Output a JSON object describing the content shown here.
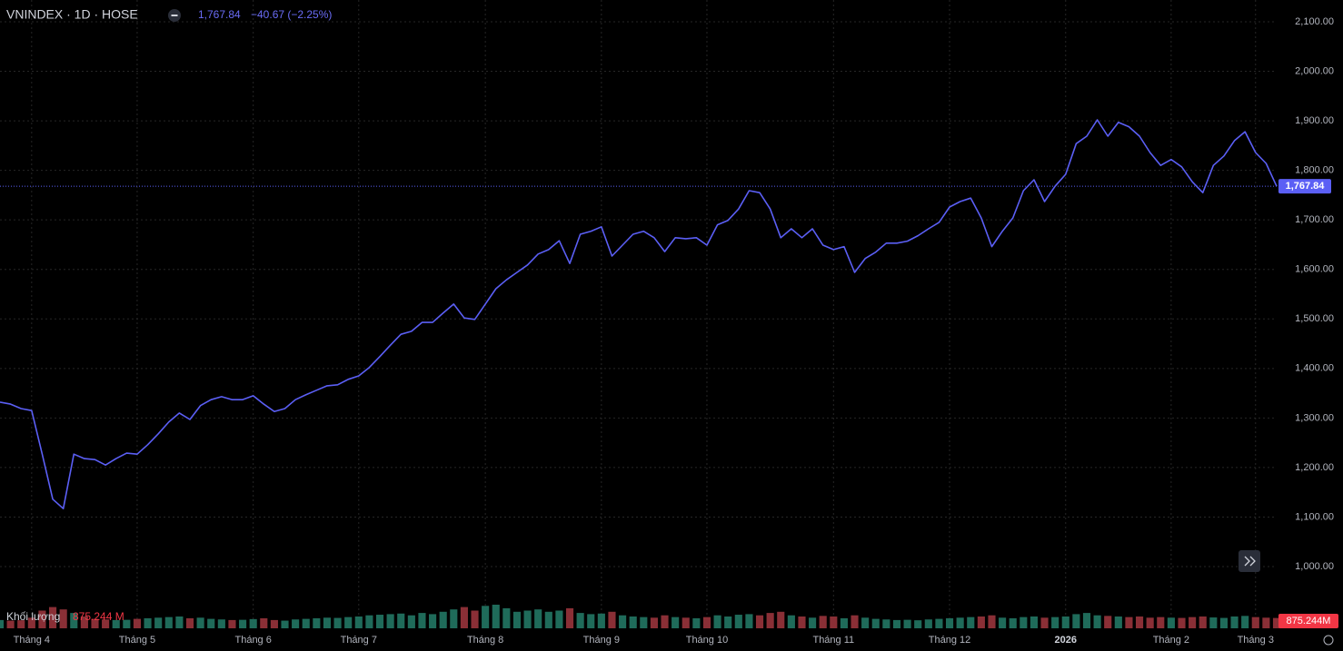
{
  "chart_data": {
    "type": "line",
    "title": "VNINDEX · 1D · HOSE",
    "last_price_label": "1,767.84",
    "change_label": "−40.67 (−2.25%)",
    "color": "#5b5ff5",
    "categories": [
      null,
      null,
      null,
      "Tháng 4",
      null,
      null,
      null,
      null,
      null,
      null,
      null,
      null,
      null,
      "Tháng 5",
      null,
      null,
      null,
      null,
      null,
      null,
      null,
      null,
      null,
      null,
      "Tháng 6",
      null,
      null,
      null,
      null,
      null,
      null,
      null,
      null,
      null,
      "Tháng 7",
      null,
      null,
      null,
      null,
      null,
      null,
      null,
      null,
      null,
      null,
      null,
      "Tháng 8",
      null,
      null,
      null,
      null,
      null,
      null,
      null,
      null,
      null,
      null,
      "Tháng 9",
      null,
      null,
      null,
      null,
      null,
      null,
      null,
      null,
      null,
      "Tháng 10",
      null,
      null,
      null,
      null,
      null,
      null,
      null,
      null,
      null,
      null,
      null,
      "Tháng 11",
      null,
      null,
      null,
      null,
      null,
      null,
      null,
      null,
      null,
      null,
      "Tháng 12",
      null,
      null,
      null,
      null,
      null,
      null,
      null,
      null,
      null,
      null,
      "2026",
      null,
      null,
      null,
      null,
      null,
      null,
      null,
      null,
      null,
      "Tháng 2",
      null,
      null,
      null,
      null,
      null,
      null,
      null,
      "Tháng 3",
      null,
      null
    ],
    "values": [
      1332,
      1328,
      1319,
      1315,
      1227,
      1136,
      1117,
      1227,
      1218,
      1216,
      1205,
      1218,
      1229,
      1227,
      1246,
      1268,
      1292,
      1310,
      1297,
      1325,
      1337,
      1343,
      1337,
      1337,
      1345,
      1328,
      1313,
      1319,
      1337,
      1347,
      1356,
      1365,
      1367,
      1378,
      1385,
      1402,
      1424,
      1447,
      1469,
      1475,
      1493,
      1493,
      1512,
      1530,
      1502,
      1499,
      1530,
      1561,
      1579,
      1594,
      1609,
      1631,
      1640,
      1658,
      1612,
      1671,
      1677,
      1686,
      1627,
      1649,
      1671,
      1677,
      1664,
      1636,
      1664,
      1662,
      1664,
      1649,
      1690,
      1699,
      1722,
      1759,
      1755,
      1722,
      1664,
      1682,
      1664,
      1682,
      1649,
      1640,
      1646,
      1594,
      1622,
      1635,
      1653,
      1653,
      1657,
      1668,
      1682,
      1695,
      1726,
      1737,
      1744,
      1704,
      1646,
      1677,
      1704,
      1759,
      1781,
      1737,
      1768,
      1792,
      1854,
      1869,
      1902,
      1869,
      1897,
      1888,
      1869,
      1836,
      1810,
      1822,
      1807,
      1777,
      1755,
      1810,
      1829,
      1860,
      1878,
      1836,
      1814,
      1767.84
    ],
    "ylim": [
      934,
      2144
    ],
    "yticks": [
      {
        "value": 1000,
        "label": "1,000.00"
      },
      {
        "value": 1100,
        "label": "1,100.00"
      },
      {
        "value": 1200,
        "label": "1,200.00"
      },
      {
        "value": 1300,
        "label": "1,300.00"
      },
      {
        "value": 1400,
        "label": "1,400.00"
      },
      {
        "value": 1500,
        "label": "1,500.00"
      },
      {
        "value": 1600,
        "label": "1,600.00"
      },
      {
        "value": 1700,
        "label": "1,700.00"
      },
      {
        "value": 1800,
        "label": "1,800.00"
      },
      {
        "value": 1900,
        "label": "1,900.00"
      },
      {
        "value": 2000,
        "label": "2,000.00"
      },
      {
        "value": 2100,
        "label": "2,100.00"
      }
    ],
    "grid": true,
    "volume": {
      "name": "Khối lượng",
      "value_label": "875.244 M",
      "axis_label": "875.244M",
      "up_color": "#1f6b5a",
      "down_color": "#8a2f36",
      "values": [
        700,
        650,
        680,
        900,
        1500,
        1800,
        1600,
        1300,
        1000,
        800,
        750,
        700,
        720,
        800,
        850,
        900,
        950,
        1000,
        850,
        900,
        800,
        750,
        700,
        720,
        780,
        850,
        700,
        650,
        750,
        800,
        850,
        900,
        880,
        950,
        1000,
        1100,
        1150,
        1200,
        1250,
        1100,
        1300,
        1200,
        1400,
        1600,
        1800,
        1500,
        1900,
        2000,
        1700,
        1400,
        1500,
        1600,
        1400,
        1500,
        1700,
        1300,
        1200,
        1250,
        1400,
        1100,
        1000,
        950,
        900,
        1100,
        950,
        900,
        850,
        950,
        1100,
        1000,
        1150,
        1200,
        1100,
        1300,
        1400,
        1100,
        1000,
        900,
        1050,
        1000,
        850,
        1100,
        900,
        800,
        750,
        700,
        720,
        680,
        750,
        800,
        850,
        900,
        950,
        1000,
        1100,
        900,
        850,
        950,
        1000,
        900,
        950,
        1000,
        1200,
        1300,
        1100,
        1050,
        1000,
        950,
        1000,
        900,
        950,
        900,
        880,
        950,
        1000,
        920,
        880,
        1000,
        1050,
        950,
        900,
        875.244
      ],
      "ylim": [
        0,
        2000
      ]
    }
  }
}
